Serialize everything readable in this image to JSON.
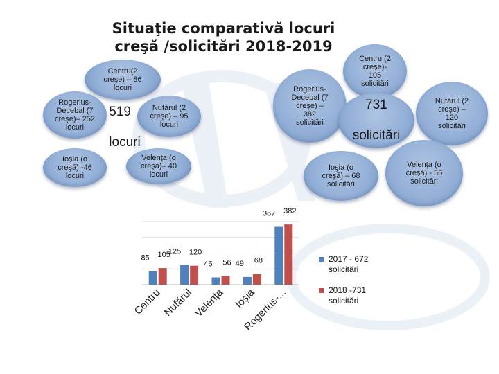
{
  "title": {
    "line1": "Situaţie comparativă locuri",
    "line2": "creşă /solicitări  2018-2019"
  },
  "places": {
    "total_number": "519",
    "total_unit": "locuri",
    "items": [
      {
        "text": "Centru(2\ncreşe) – 86\nlocuri"
      },
      {
        "text": "Rogerius-\nDecebal (7\ncreşe)– 252\nlocuri"
      },
      {
        "text": "Nufărul (2\ncreşe) – 95\nlocuri"
      },
      {
        "text": "Ioşia (o\ncreşă) -46\nlocuri"
      },
      {
        "text": "Velenţa (o\ncreşă)– 40\nlocuri"
      }
    ]
  },
  "requests": {
    "total_number": "731",
    "total_unit": "solicitări",
    "items": [
      {
        "text": "Centru (2\ncreşe)-\n105\nsolicitări"
      },
      {
        "text": "Rogerius-\nDecebal (7\ncreşe) –\n382\nsolicitări"
      },
      {
        "text": "Nufărul (2\ncreşe) –\n120\nsolicitări"
      },
      {
        "text": "Ioşia (o\ncreşă) – 68\nsolicitări"
      },
      {
        "text": "Velenţa (o\ncreşă) - 56\nsolicitări"
      }
    ]
  },
  "chart_data": {
    "type": "bar",
    "categories": [
      "Centru",
      "Nufărul",
      "Velenţa",
      "Ioşia",
      "Rogerius-..."
    ],
    "series": [
      {
        "name": "2017 - 672 solicitări",
        "values": [
          85,
          125,
          46,
          49,
          367
        ],
        "color": "#4f81bd"
      },
      {
        "name": "2018 -731 solicitări",
        "values": [
          105,
          120,
          56,
          68,
          382
        ],
        "color": "#c0504d"
      }
    ],
    "value_labels": [
      [
        "85",
        "125",
        "46",
        "49",
        "367"
      ],
      [
        "105",
        "120",
        "56",
        "68",
        "382"
      ]
    ],
    "ylim": [
      0,
      400
    ],
    "grid": true,
    "legend_position": "right"
  }
}
